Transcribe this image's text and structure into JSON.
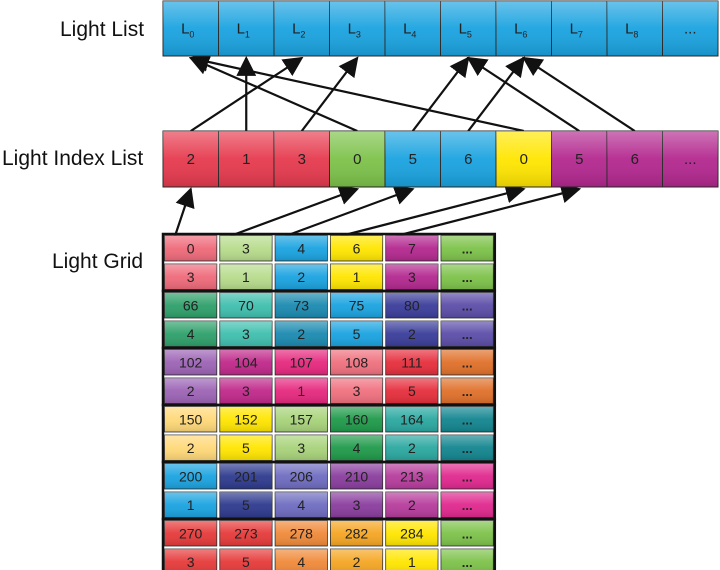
{
  "labels": {
    "light_list": "Light List",
    "light_index_list": "Light Index List",
    "light_grid": "Light Grid"
  },
  "light_list": [
    {
      "base": "L",
      "sub": "0",
      "color": "#1aa3e0"
    },
    {
      "base": "L",
      "sub": "1",
      "color": "#1aa3e0"
    },
    {
      "base": "L",
      "sub": "2",
      "color": "#1aa3e0"
    },
    {
      "base": "L",
      "sub": "3",
      "color": "#1aa3e0"
    },
    {
      "base": "L",
      "sub": "4",
      "color": "#1aa3e0"
    },
    {
      "base": "L",
      "sub": "5",
      "color": "#1aa3e0"
    },
    {
      "base": "L",
      "sub": "6",
      "color": "#1aa3e0"
    },
    {
      "base": "L",
      "sub": "7",
      "color": "#1aa3e0"
    },
    {
      "base": "L",
      "sub": "8",
      "color": "#1aa3e0"
    },
    {
      "base": "...",
      "sub": "",
      "color": "#1aa3e0"
    }
  ],
  "light_index_list": [
    {
      "value": "2",
      "color": "#e63a4e"
    },
    {
      "value": "1",
      "color": "#e63a4e"
    },
    {
      "value": "3",
      "color": "#e63a4e"
    },
    {
      "value": "0",
      "color": "#7dc24a"
    },
    {
      "value": "5",
      "color": "#1aa3e0"
    },
    {
      "value": "6",
      "color": "#1aa3e0"
    },
    {
      "value": "0",
      "color": "#ffe600"
    },
    {
      "value": "5",
      "color": "#b3288f"
    },
    {
      "value": "6",
      "color": "#b3288f"
    },
    {
      "value": "...",
      "color": "#b3288f"
    }
  ],
  "index_to_light_arrows": [
    {
      "from": 0,
      "to": 2
    },
    {
      "from": 1,
      "to": 1
    },
    {
      "from": 2,
      "to": 3
    },
    {
      "from": 3,
      "to": 0
    },
    {
      "from": 4,
      "to": 5
    },
    {
      "from": 5,
      "to": 6
    },
    {
      "from": 6,
      "to": 0
    },
    {
      "from": 7,
      "to": 5
    },
    {
      "from": 8,
      "to": 6
    }
  ],
  "grid_to_index_arrows": [
    {
      "from_col": 0,
      "to": 0
    },
    {
      "from_col": 1,
      "to": 3
    },
    {
      "from_col": 2,
      "to": 4
    },
    {
      "from_col": 3,
      "to": 6
    },
    {
      "from_col": 4,
      "to": 7
    }
  ],
  "light_grid": [
    {
      "border": "#111111",
      "cells": [
        {
          "top": "0",
          "bottom": "3",
          "color": "#ef6a7a"
        },
        {
          "top": "3",
          "bottom": "1",
          "color": "#b7dc8c"
        },
        {
          "top": "4",
          "bottom": "2",
          "color": "#1aa3e0"
        },
        {
          "top": "6",
          "bottom": "1",
          "color": "#ffe600"
        },
        {
          "top": "7",
          "bottom": "3",
          "color": "#b3288f"
        },
        {
          "top": "...",
          "bottom": "...",
          "color": "#7dc24a"
        }
      ]
    },
    {
      "border": "#111111",
      "cells": [
        {
          "top": "66",
          "bottom": "4",
          "color": "#2ea06a"
        },
        {
          "top": "70",
          "bottom": "3",
          "color": "#3fbfae"
        },
        {
          "top": "73",
          "bottom": "2",
          "color": "#1a8ab0"
        },
        {
          "top": "75",
          "bottom": "5",
          "color": "#1aa3e0"
        },
        {
          "top": "80",
          "bottom": "2",
          "color": "#3a3d9a"
        },
        {
          "top": "...",
          "bottom": "...",
          "color": "#5b4da8"
        }
      ]
    },
    {
      "border": "#111111",
      "cells": [
        {
          "top": "102",
          "bottom": "2",
          "color": "#9c63b5"
        },
        {
          "top": "104",
          "bottom": "3",
          "color": "#c0288a"
        },
        {
          "top": "107",
          "bottom": "1",
          "color": "#e6287e"
        },
        {
          "top": "108",
          "bottom": "3",
          "color": "#f0707e"
        },
        {
          "top": "111",
          "bottom": "5",
          "color": "#e62e3c"
        },
        {
          "top": "...",
          "bottom": "...",
          "color": "#e0702a"
        }
      ]
    },
    {
      "border": "#111111",
      "cells": [
        {
          "top": "150",
          "bottom": "2",
          "color": "#ffd878"
        },
        {
          "top": "152",
          "bottom": "5",
          "color": "#ffe600"
        },
        {
          "top": "157",
          "bottom": "3",
          "color": "#a8d37a"
        },
        {
          "top": "160",
          "bottom": "4",
          "color": "#1f9a4a"
        },
        {
          "top": "164",
          "bottom": "2",
          "color": "#2aa8a0"
        },
        {
          "top": "...",
          "bottom": "...",
          "color": "#12858f"
        }
      ]
    },
    {
      "border": "#111111",
      "cells": [
        {
          "top": "200",
          "bottom": "1",
          "color": "#1aa3e0"
        },
        {
          "top": "201",
          "bottom": "5",
          "color": "#2e3a8e"
        },
        {
          "top": "206",
          "bottom": "4",
          "color": "#6e6cc0"
        },
        {
          "top": "210",
          "bottom": "3",
          "color": "#8a3d9e"
        },
        {
          "top": "213",
          "bottom": "2",
          "color": "#b63c9c"
        },
        {
          "top": "...",
          "bottom": "...",
          "color": "#e0288e"
        }
      ]
    },
    {
      "border": "#111111",
      "cells": [
        {
          "top": "270",
          "bottom": "3",
          "color": "#e63a3a"
        },
        {
          "top": "273",
          "bottom": "5",
          "color": "#e63a3a"
        },
        {
          "top": "278",
          "bottom": "4",
          "color": "#f08a3a"
        },
        {
          "top": "282",
          "bottom": "2",
          "color": "#f5a623"
        },
        {
          "top": "284",
          "bottom": "1",
          "color": "#ffe600"
        },
        {
          "top": "...",
          "bottom": "...",
          "color": "#7dc24a"
        }
      ]
    }
  ]
}
